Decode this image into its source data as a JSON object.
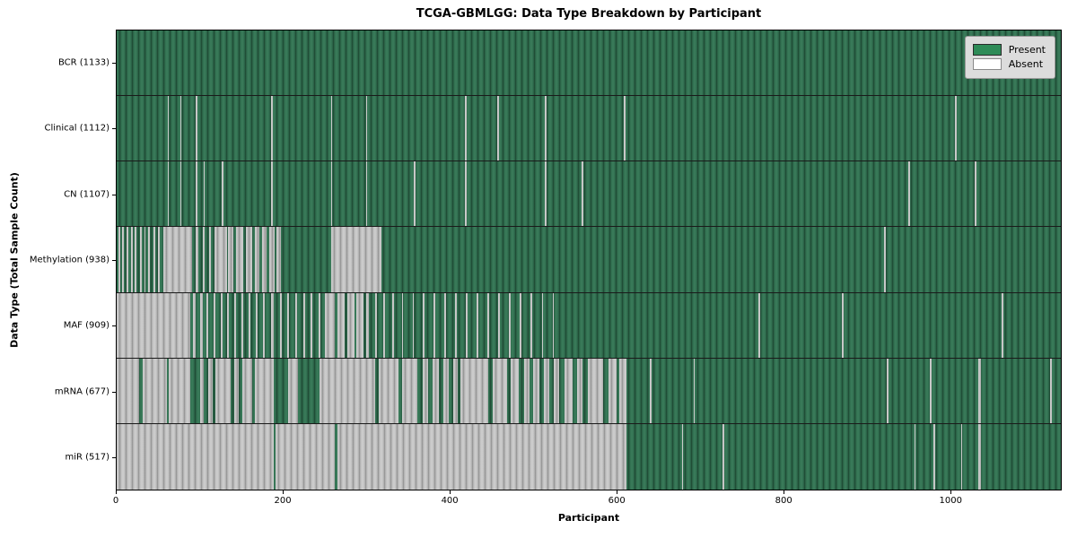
{
  "chart_data": {
    "type": "heatmap",
    "title": "TCGA-GBMLGG: Data Type Breakdown by Participant",
    "xlabel": "Participant",
    "ylabel": "Data Type (Total Sample Count)",
    "x_max": 1133,
    "x_ticks": [
      0,
      200,
      400,
      600,
      800,
      1000
    ],
    "grid": false,
    "legend": {
      "position": "upper right",
      "entries": [
        {
          "label": "Present",
          "color": "#2e8b57"
        },
        {
          "label": "Absent",
          "color": "#ffffff"
        }
      ]
    },
    "colors": {
      "present": "#2e8b57",
      "absent": "#ffffff"
    },
    "rows": [
      {
        "name": "BCR",
        "label": "BCR (1133)",
        "total": 1133,
        "absent_segments": []
      },
      {
        "name": "Clinical",
        "label": "Clinical (1112)",
        "total": 1112,
        "absent_segments": [
          [
            61,
            63
          ],
          [
            76,
            78
          ],
          [
            95,
            97
          ],
          [
            185,
            187
          ],
          [
            257,
            259
          ],
          [
            299,
            301
          ],
          [
            418,
            420
          ],
          [
            457,
            459
          ],
          [
            514,
            516
          ],
          [
            609,
            611
          ],
          [
            1006,
            1008
          ]
        ]
      },
      {
        "name": "CN",
        "label": "CN (1107)",
        "total": 1107,
        "absent_segments": [
          [
            61,
            63
          ],
          [
            76,
            78
          ],
          [
            95,
            97
          ],
          [
            104,
            106
          ],
          [
            126,
            128
          ],
          [
            185,
            187
          ],
          [
            257,
            259
          ],
          [
            299,
            301
          ],
          [
            357,
            359
          ],
          [
            418,
            420
          ],
          [
            514,
            516
          ],
          [
            558,
            560
          ],
          [
            950,
            952
          ],
          [
            1030,
            1032
          ]
        ]
      },
      {
        "name": "Methylation",
        "label": "Methylation (938)",
        "total": 938,
        "absent_segments": [
          [
            2,
            4
          ],
          [
            7,
            9
          ],
          [
            12,
            14
          ],
          [
            17,
            19
          ],
          [
            22,
            24
          ],
          [
            28,
            30
          ],
          [
            33,
            35
          ],
          [
            38,
            40
          ],
          [
            44,
            46
          ],
          [
            50,
            52
          ],
          [
            56,
            90
          ],
          [
            95,
            98
          ],
          [
            103,
            106
          ],
          [
            111,
            113
          ],
          [
            117,
            132
          ],
          [
            134,
            140
          ],
          [
            143,
            152
          ],
          [
            155,
            163
          ],
          [
            166,
            171
          ],
          [
            174,
            180
          ],
          [
            183,
            190
          ],
          [
            192,
            197
          ],
          [
            257,
            318
          ],
          [
            921,
            923
          ]
        ]
      },
      {
        "name": "MAF",
        "label": "MAF (909)",
        "total": 909,
        "absent_segments": [
          [
            0,
            88
          ],
          [
            92,
            95
          ],
          [
            100,
            103
          ],
          [
            108,
            110
          ],
          [
            116,
            119
          ],
          [
            125,
            127
          ],
          [
            133,
            135
          ],
          [
            141,
            143
          ],
          [
            150,
            152
          ],
          [
            158,
            160
          ],
          [
            167,
            169
          ],
          [
            176,
            178
          ],
          [
            185,
            188
          ],
          [
            196,
            198
          ],
          [
            205,
            207
          ],
          [
            214,
            216
          ],
          [
            224,
            226
          ],
          [
            233,
            235
          ],
          [
            242,
            244
          ],
          [
            250,
            262
          ],
          [
            265,
            274
          ],
          [
            277,
            285
          ],
          [
            288,
            296
          ],
          [
            299,
            303
          ],
          [
            310,
            312
          ],
          [
            320,
            322
          ],
          [
            331,
            333
          ],
          [
            342,
            344
          ],
          [
            355,
            357
          ],
          [
            367,
            369
          ],
          [
            380,
            382
          ],
          [
            393,
            395
          ],
          [
            406,
            408
          ],
          [
            419,
            421
          ],
          [
            432,
            434
          ],
          [
            445,
            447
          ],
          [
            458,
            460
          ],
          [
            471,
            473
          ],
          [
            484,
            486
          ],
          [
            497,
            499
          ],
          [
            510,
            512
          ],
          [
            523,
            525
          ],
          [
            770,
            772
          ],
          [
            870,
            872
          ],
          [
            1062,
            1064
          ]
        ]
      },
      {
        "name": "mRNA",
        "label": "mRNA (677)",
        "total": 677,
        "absent_segments": [
          [
            0,
            27
          ],
          [
            31,
            60
          ],
          [
            63,
            88
          ],
          [
            100,
            105
          ],
          [
            110,
            115
          ],
          [
            119,
            137
          ],
          [
            141,
            147
          ],
          [
            151,
            163
          ],
          [
            166,
            188
          ],
          [
            206,
            218
          ],
          [
            243,
            310
          ],
          [
            315,
            338
          ],
          [
            343,
            361
          ],
          [
            367,
            374
          ],
          [
            379,
            387
          ],
          [
            392,
            399
          ],
          [
            404,
            409
          ],
          [
            413,
            446
          ],
          [
            451,
            468
          ],
          [
            473,
            482
          ],
          [
            489,
            495
          ],
          [
            500,
            507
          ],
          [
            513,
            519
          ],
          [
            524,
            531
          ],
          [
            537,
            547
          ],
          [
            553,
            559
          ],
          [
            565,
            584
          ],
          [
            590,
            600
          ],
          [
            603,
            612
          ],
          [
            640,
            642
          ],
          [
            692,
            694
          ],
          [
            924,
            926
          ],
          [
            976,
            978
          ],
          [
            1034,
            1037
          ],
          [
            1120,
            1122
          ]
        ]
      },
      {
        "name": "miR",
        "label": "miR (517)",
        "total": 517,
        "absent_segments": [
          [
            0,
            188
          ],
          [
            191,
            262
          ],
          [
            265,
            612
          ],
          [
            678,
            680
          ],
          [
            727,
            729
          ],
          [
            957,
            959
          ],
          [
            980,
            982
          ],
          [
            1013,
            1015
          ],
          [
            1034,
            1037
          ]
        ]
      }
    ]
  }
}
